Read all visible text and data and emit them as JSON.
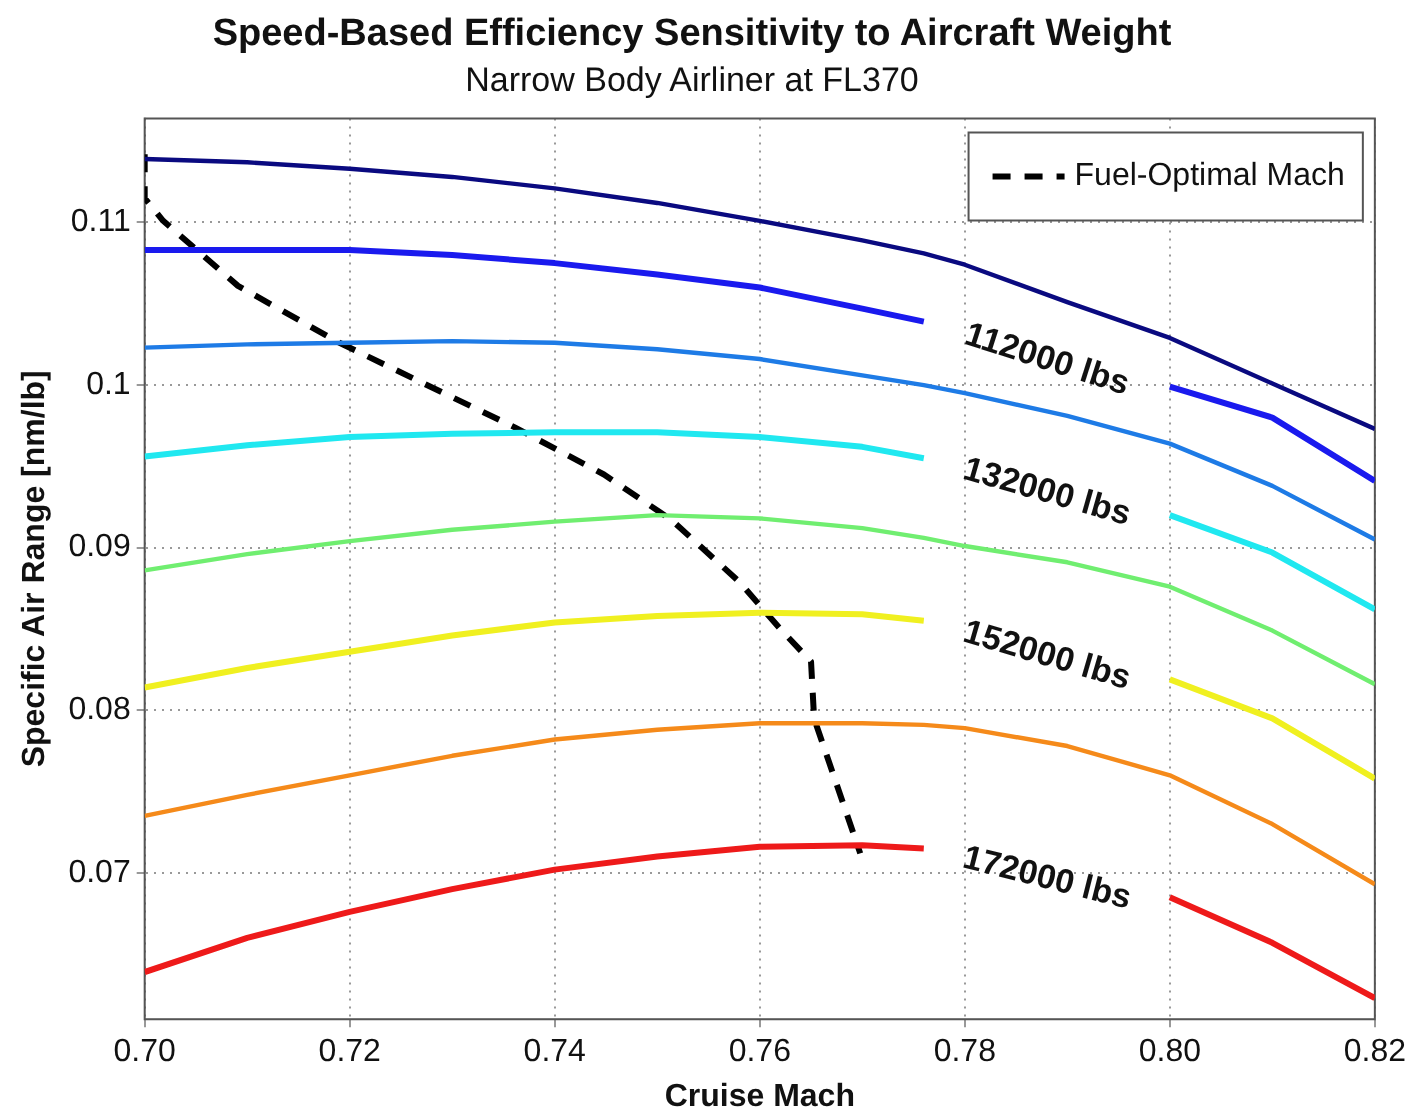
{
  "chart_data": {
    "type": "line",
    "title": "Speed-Based Efficiency Sensitivity to Aircraft Weight",
    "subtitle": "Narrow Body Airliner at FL370",
    "xlabel": "Cruise Mach",
    "ylabel": "Specific Air Range [nm/lb]",
    "x": [
      0.7,
      0.71,
      0.72,
      0.73,
      0.74,
      0.75,
      0.76,
      0.77,
      0.776,
      0.78,
      0.79,
      0.8,
      0.81,
      0.82
    ],
    "series": [
      {
        "color": "#0a0a80",
        "values": [
          0.1139,
          0.1137,
          0.1133,
          0.1128,
          0.1121,
          0.1112,
          0.1101,
          0.1089,
          0.1081,
          0.1074,
          0.1051,
          0.1029,
          0.1001,
          0.0973
        ]
      },
      {
        "name": "112000 lbs",
        "color": "#1a1aee",
        "values": [
          0.1083,
          0.1083,
          0.1083,
          0.108,
          0.1075,
          0.1068,
          0.106,
          0.1047,
          0.1039,
          null,
          null,
          0.0999,
          0.098,
          0.0941
        ]
      },
      {
        "color": "#1e7be6",
        "values": [
          0.1023,
          0.1025,
          0.1026,
          0.1027,
          0.1026,
          0.1022,
          0.1016,
          0.1006,
          0.1,
          0.0995,
          0.0981,
          0.0964,
          0.0938,
          0.0905
        ]
      },
      {
        "name": "132000 lbs",
        "color": "#20e8f0",
        "values": [
          0.0956,
          0.0963,
          0.0968,
          0.097,
          0.0971,
          0.0971,
          0.0968,
          0.0962,
          0.0955,
          null,
          null,
          0.092,
          0.0897,
          0.0862
        ]
      },
      {
        "color": "#70ee70",
        "values": [
          0.0886,
          0.0896,
          0.0904,
          0.0911,
          0.0916,
          0.092,
          0.0918,
          0.0912,
          0.0906,
          0.0901,
          0.0891,
          0.0876,
          0.0849,
          0.0816
        ]
      },
      {
        "name": "152000 lbs",
        "color": "#f0f020",
        "values": [
          0.0814,
          0.0826,
          0.0836,
          0.0846,
          0.0854,
          0.0858,
          0.086,
          0.0859,
          0.0855,
          null,
          null,
          0.0819,
          0.0795,
          0.0758
        ]
      },
      {
        "color": "#f58a1a",
        "values": [
          0.0735,
          0.0748,
          0.076,
          0.0772,
          0.0782,
          0.0788,
          0.0792,
          0.0792,
          0.0791,
          0.0789,
          0.0778,
          0.076,
          0.073,
          0.0693
        ]
      },
      {
        "name": "172000 lbs",
        "color": "#ee1a1a",
        "values": [
          0.0639,
          0.066,
          0.0676,
          0.069,
          0.0702,
          0.071,
          0.0716,
          0.0717,
          0.0715,
          null,
          null,
          0.0685,
          0.0657,
          0.0623
        ]
      },
      {
        "name": "Fuel-Optimal Mach",
        "color": "#000000",
        "line_style": "dashed",
        "x": [
          0.7,
          0.7,
          0.7018,
          0.7091,
          0.719,
          0.7361,
          0.7448,
          0.7514,
          0.758,
          0.762,
          0.765,
          0.7653,
          0.7698
        ],
        "values": [
          0.1142,
          0.1115,
          0.1101,
          0.1061,
          0.1026,
          0.0974,
          0.0945,
          0.0917,
          0.0879,
          0.085,
          0.083,
          0.0795,
          0.0712
        ]
      }
    ],
    "xlim": [
      0.7,
      0.82
    ],
    "ylim": [
      0.061,
      0.1164
    ],
    "xticks": [
      {
        "value": 0.7,
        "label": "0.70"
      },
      {
        "value": 0.72,
        "label": "0.72"
      },
      {
        "value": 0.74,
        "label": "0.74"
      },
      {
        "value": 0.76,
        "label": "0.76"
      },
      {
        "value": 0.78,
        "label": "0.78"
      },
      {
        "value": 0.8,
        "label": "0.80"
      },
      {
        "value": 0.82,
        "label": "0.82"
      }
    ],
    "yticks": [
      0.07,
      0.08,
      0.09,
      0.1,
      0.11
    ],
    "grid": true,
    "legend": "top right",
    "line_style": "solid",
    "marker": "none"
  }
}
